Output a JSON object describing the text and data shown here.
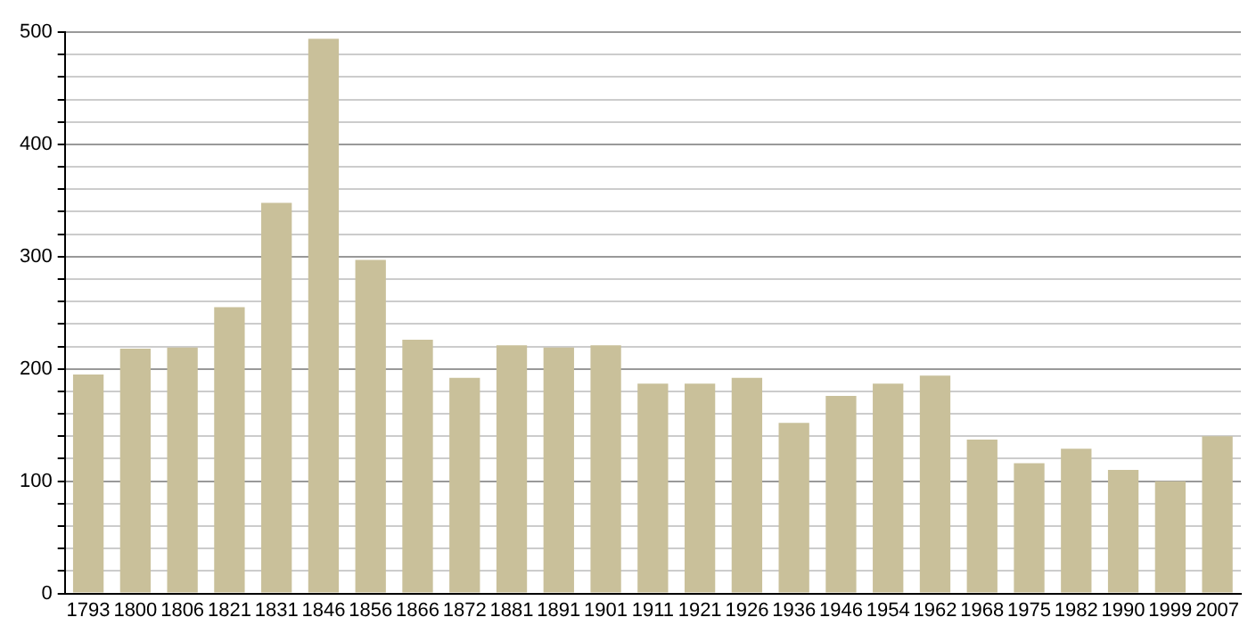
{
  "chart_data": {
    "type": "bar",
    "categories": [
      "1793",
      "1800",
      "1806",
      "1821",
      "1831",
      "1846",
      "1856",
      "1866",
      "1872",
      "1881",
      "1891",
      "1901",
      "1911",
      "1921",
      "1926",
      "1936",
      "1946",
      "1954",
      "1962",
      "1968",
      "1975",
      "1982",
      "1990",
      "1999",
      "2007"
    ],
    "values": [
      195,
      218,
      219,
      255,
      348,
      494,
      297,
      226,
      192,
      221,
      219,
      221,
      187,
      187,
      192,
      152,
      176,
      187,
      194,
      137,
      116,
      129,
      110,
      100,
      140
    ],
    "color": "#c9c09a",
    "ylim": [
      0,
      500
    ],
    "yticks": [
      0,
      {
        "value": 20,
        "label": null
      },
      {
        "value": 40,
        "label": null
      },
      {
        "value": 60,
        "label": null
      },
      {
        "value": 80,
        "label": null
      },
      100,
      {
        "value": 120,
        "label": null
      },
      {
        "value": 140,
        "label": null
      },
      {
        "value": 160,
        "label": null
      },
      {
        "value": 180,
        "label": null
      },
      200,
      {
        "value": 220,
        "label": null
      },
      {
        "value": 240,
        "label": null
      },
      {
        "value": 260,
        "label": null
      },
      {
        "value": 280,
        "label": null
      },
      300,
      {
        "value": 320,
        "label": null
      },
      {
        "value": 340,
        "label": null
      },
      {
        "value": 360,
        "label": null
      },
      {
        "value": 380,
        "label": null
      },
      400,
      {
        "value": 420,
        "label": null
      },
      {
        "value": 440,
        "label": null
      },
      {
        "value": 460,
        "label": null
      },
      {
        "value": 480,
        "label": null
      },
      500
    ],
    "grid": "y"
  }
}
